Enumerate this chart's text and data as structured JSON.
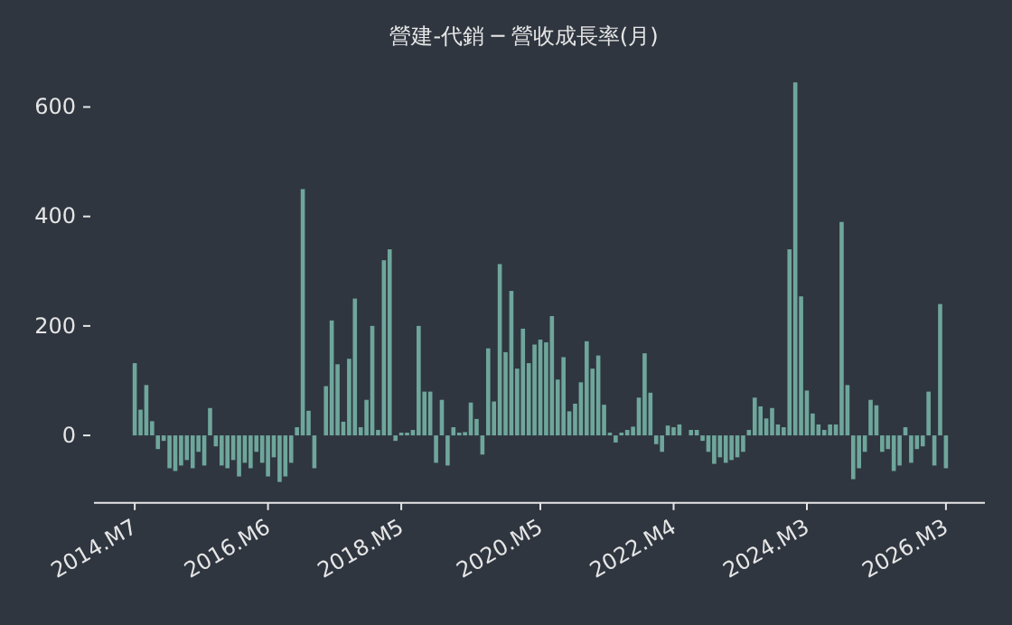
{
  "chart_data": {
    "type": "bar",
    "title": "營建-代銷 ─ 營收成長率(月)",
    "categories": [
      "2014.M7",
      null,
      null,
      null,
      null,
      null,
      null,
      null,
      null,
      null,
      null,
      null,
      null,
      null,
      null,
      null,
      null,
      null,
      null,
      null,
      null,
      null,
      null,
      "2016.M6",
      null,
      null,
      null,
      null,
      null,
      null,
      null,
      null,
      null,
      null,
      null,
      null,
      null,
      null,
      null,
      null,
      null,
      null,
      null,
      null,
      null,
      null,
      "2018.M5",
      null,
      null,
      null,
      null,
      null,
      null,
      null,
      null,
      null,
      null,
      null,
      null,
      null,
      null,
      null,
      null,
      null,
      null,
      null,
      null,
      null,
      null,
      null,
      "2020.M5",
      null,
      null,
      null,
      null,
      null,
      null,
      null,
      null,
      null,
      null,
      null,
      null,
      null,
      null,
      null,
      null,
      null,
      null,
      null,
      null,
      null,
      null,
      "2022.M4",
      null,
      null,
      null,
      null,
      null,
      null,
      null,
      null,
      null,
      null,
      null,
      null,
      null,
      null,
      null,
      null,
      null,
      null,
      null,
      null,
      null,
      null,
      "2024.M3",
      null,
      null,
      null,
      null,
      null,
      null,
      null,
      null,
      null,
      null,
      null,
      null,
      null,
      null,
      null,
      null,
      null,
      null,
      null,
      null,
      null,
      null,
      null,
      "2026.M3"
    ],
    "values": [
      132,
      47,
      92,
      26,
      -25,
      -10,
      -60,
      -65,
      -55,
      -45,
      -60,
      -30,
      -55,
      50,
      -20,
      -55,
      -60,
      -45,
      -75,
      -50,
      -60,
      -30,
      -50,
      -75,
      -40,
      -85,
      -75,
      -50,
      15,
      450,
      45,
      -60,
      0,
      90,
      210,
      130,
      25,
      140,
      250,
      15,
      65,
      200,
      10,
      320,
      340,
      -10,
      5,
      5,
      10,
      200,
      80,
      80,
      -50,
      65,
      -55,
      15,
      5,
      6,
      60,
      30,
      -35,
      159,
      62,
      313,
      152,
      264,
      122,
      195,
      132,
      166,
      175,
      170,
      218,
      102,
      143,
      44,
      58,
      97,
      172,
      122,
      146,
      56,
      5,
      -13,
      5,
      10,
      16,
      69,
      150,
      78,
      -16,
      -30,
      18,
      15,
      20,
      0,
      10,
      10,
      -10,
      -30,
      -52,
      -40,
      -50,
      -45,
      -40,
      -30,
      10,
      69,
      53,
      31,
      50,
      20,
      15,
      340,
      645,
      254,
      82,
      40,
      20,
      10,
      20,
      20,
      390,
      92,
      -80,
      -60,
      -30,
      65,
      55,
      -30,
      -25,
      -65,
      -55,
      15,
      -50,
      -25,
      -20,
      80,
      -55,
      240,
      -60
    ],
    "color": "#6fa69b",
    "ylim": [
      -120,
      645
    ],
    "yticks": [
      0,
      200,
      400,
      600
    ],
    "grid": false
  }
}
